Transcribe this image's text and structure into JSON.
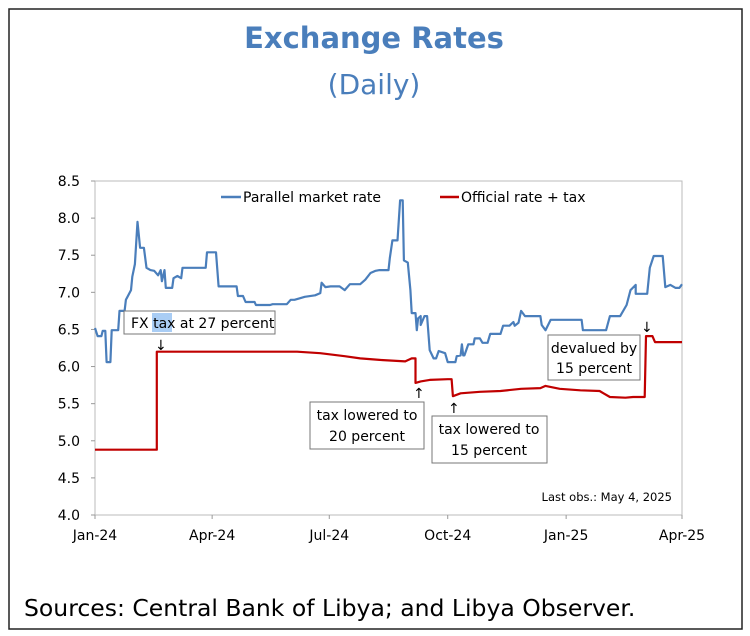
{
  "chart_data": {
    "type": "line",
    "title": "Exchange Rates",
    "subtitle": "(Daily)",
    "xlabel": "",
    "ylabel": "",
    "x_unit": "days since Jan 1, 2024",
    "xlim": [
      0,
      456
    ],
    "ylim": [
      4.0,
      8.5
    ],
    "yticks": [
      "4.0",
      "4.5",
      "5.0",
      "5.5",
      "6.0",
      "6.5",
      "7.0",
      "7.5",
      "8.0",
      "8.5"
    ],
    "xticks": [
      {
        "label": "Jan-24",
        "day": 0
      },
      {
        "label": "Apr-24",
        "day": 91
      },
      {
        "label": "Jul-24",
        "day": 182
      },
      {
        "label": "Oct-24",
        "day": 274
      },
      {
        "label": "Jan-25",
        "day": 366
      },
      {
        "label": "Apr-25",
        "day": 456
      }
    ],
    "grid": false,
    "legend_position": "top",
    "series": [
      {
        "name": "Parallel market rate",
        "color": "#4a7ebb",
        "points": [
          [
            0,
            6.52
          ],
          [
            2,
            6.41
          ],
          [
            5,
            6.41
          ],
          [
            6,
            6.48
          ],
          [
            8,
            6.48
          ],
          [
            9,
            6.06
          ],
          [
            12,
            6.06
          ],
          [
            13,
            6.49
          ],
          [
            18,
            6.49
          ],
          [
            19,
            6.75
          ],
          [
            23,
            6.75
          ],
          [
            24,
            6.9
          ],
          [
            28,
            7.03
          ],
          [
            29,
            7.21
          ],
          [
            31,
            7.38
          ],
          [
            33,
            7.95
          ],
          [
            35,
            7.6
          ],
          [
            38,
            7.6
          ],
          [
            40,
            7.33
          ],
          [
            43,
            7.3
          ],
          [
            46,
            7.29
          ],
          [
            49,
            7.23
          ],
          [
            51,
            7.3
          ],
          [
            52,
            7.15
          ],
          [
            54,
            7.3
          ],
          [
            55,
            7.06
          ],
          [
            60,
            7.06
          ],
          [
            61,
            7.19
          ],
          [
            64,
            7.22
          ],
          [
            67,
            7.19
          ],
          [
            68,
            7.33
          ],
          [
            86,
            7.33
          ],
          [
            87,
            7.54
          ],
          [
            94,
            7.54
          ],
          [
            96,
            7.08
          ],
          [
            110,
            7.08
          ],
          [
            111,
            6.95
          ],
          [
            115,
            6.95
          ],
          [
            117,
            6.87
          ],
          [
            124,
            6.87
          ],
          [
            125,
            6.83
          ],
          [
            136,
            6.83
          ],
          [
            138,
            6.84
          ],
          [
            149,
            6.84
          ],
          [
            152,
            6.9
          ],
          [
            155,
            6.9
          ],
          [
            159,
            6.92
          ],
          [
            163,
            6.94
          ],
          [
            171,
            6.96
          ],
          [
            175,
            6.99
          ],
          [
            176,
            7.13
          ],
          [
            179,
            7.07
          ],
          [
            183,
            7.08
          ],
          [
            190,
            7.08
          ],
          [
            194,
            7.03
          ],
          [
            198,
            7.11
          ],
          [
            206,
            7.11
          ],
          [
            210,
            7.17
          ],
          [
            214,
            7.26
          ],
          [
            218,
            7.29
          ],
          [
            221,
            7.3
          ],
          [
            228,
            7.3
          ],
          [
            229,
            7.46
          ],
          [
            231,
            7.7
          ],
          [
            235,
            7.7
          ],
          [
            237,
            8.24
          ],
          [
            239,
            8.24
          ],
          [
            240,
            7.43
          ],
          [
            243,
            7.4
          ],
          [
            245,
            7.03
          ],
          [
            246,
            6.72
          ],
          [
            249,
            6.72
          ],
          [
            250,
            6.49
          ],
          [
            251,
            6.65
          ],
          [
            253,
            6.68
          ],
          [
            253,
            6.56
          ],
          [
            256,
            6.68
          ],
          [
            258,
            6.68
          ],
          [
            260,
            6.22
          ],
          [
            263,
            6.11
          ],
          [
            265,
            6.11
          ],
          [
            267,
            6.21
          ],
          [
            272,
            6.18
          ],
          [
            274,
            6.06
          ],
          [
            280,
            6.06
          ],
          [
            281,
            6.14
          ],
          [
            284,
            6.15
          ],
          [
            285,
            6.3
          ],
          [
            286,
            6.15
          ],
          [
            287,
            6.15
          ],
          [
            290,
            6.3
          ],
          [
            294,
            6.3
          ],
          [
            295,
            6.38
          ],
          [
            299,
            6.38
          ],
          [
            301,
            6.32
          ],
          [
            305,
            6.32
          ],
          [
            307,
            6.44
          ],
          [
            315,
            6.44
          ],
          [
            317,
            6.55
          ],
          [
            322,
            6.55
          ],
          [
            325,
            6.6
          ],
          [
            326,
            6.55
          ],
          [
            329,
            6.59
          ],
          [
            331,
            6.75
          ],
          [
            334,
            6.68
          ],
          [
            336,
            6.68
          ],
          [
            346,
            6.68
          ],
          [
            347,
            6.56
          ],
          [
            350,
            6.49
          ],
          [
            352,
            6.56
          ],
          [
            354,
            6.63
          ],
          [
            378,
            6.63
          ],
          [
            379,
            6.49
          ],
          [
            397,
            6.49
          ],
          [
            400,
            6.68
          ],
          [
            408,
            6.68
          ],
          [
            413,
            6.83
          ],
          [
            416,
            7.03
          ],
          [
            420,
            7.1
          ],
          [
            420,
            6.98
          ],
          [
            429,
            6.98
          ],
          [
            431,
            7.33
          ],
          [
            434,
            7.49
          ],
          [
            441,
            7.49
          ],
          [
            443,
            7.07
          ],
          [
            447,
            7.1
          ],
          [
            451,
            7.06
          ],
          [
            454,
            7.06
          ],
          [
            456,
            7.11
          ]
        ]
      },
      {
        "name": "Official rate + tax",
        "color": "#c00000",
        "points": [
          [
            0,
            4.88
          ],
          [
            48,
            4.88
          ],
          [
            48,
            6.2
          ],
          [
            152,
            6.2
          ],
          [
            157,
            6.2
          ],
          [
            175,
            6.18
          ],
          [
            194,
            6.14
          ],
          [
            206,
            6.11
          ],
          [
            221,
            6.09
          ],
          [
            241,
            6.07
          ],
          [
            246,
            6.11
          ],
          [
            249,
            6.11
          ],
          [
            249,
            5.78
          ],
          [
            253,
            5.8
          ],
          [
            260,
            5.82
          ],
          [
            274,
            5.83
          ],
          [
            277,
            5.83
          ],
          [
            278,
            5.6
          ],
          [
            284,
            5.64
          ],
          [
            299,
            5.66
          ],
          [
            315,
            5.67
          ],
          [
            331,
            5.7
          ],
          [
            346,
            5.71
          ],
          [
            350,
            5.74
          ],
          [
            361,
            5.7
          ],
          [
            377,
            5.68
          ],
          [
            392,
            5.67
          ],
          [
            395,
            5.64
          ],
          [
            400,
            5.59
          ],
          [
            412,
            5.58
          ],
          [
            418,
            5.59
          ],
          [
            427,
            5.59
          ],
          [
            428,
            6.41
          ],
          [
            433,
            6.41
          ],
          [
            435,
            6.33
          ],
          [
            456,
            6.33
          ]
        ]
      }
    ],
    "annotations": [
      {
        "text": "FX tax at 27 percent",
        "highlight": "tax",
        "arrow": "↓"
      },
      {
        "text_lines": [
          "tax lowered to",
          "20 percent"
        ],
        "arrow": "↑"
      },
      {
        "text_lines": [
          "tax lowered to",
          "15 percent"
        ],
        "arrow": "↑"
      },
      {
        "text_lines": [
          "devalued by",
          "15 percent"
        ],
        "arrow": "↓"
      }
    ],
    "note": "Last obs.: May 4, 2025"
  },
  "sources": "Sources: Central Bank of Libya; and Libya Observer."
}
